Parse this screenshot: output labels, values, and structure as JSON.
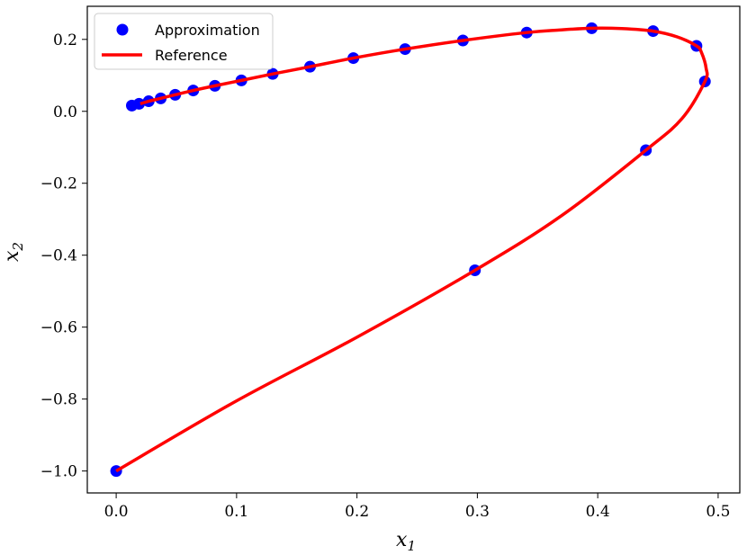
{
  "chart_data": {
    "type": "scatter",
    "title": "",
    "xlabel": "x",
    "xlabel_sub": "1",
    "ylabel": "x",
    "ylabel_sub": "2",
    "xlim": [
      -0.024,
      0.518
    ],
    "ylim": [
      -1.061,
      0.292
    ],
    "xticks": [
      0.0,
      0.1,
      0.2,
      0.3,
      0.4,
      0.5
    ],
    "xtick_labels": [
      "0.0",
      "0.1",
      "0.2",
      "0.3",
      "0.4",
      "0.5"
    ],
    "yticks": [
      0.2,
      0.0,
      -0.2,
      -0.4,
      -0.6,
      -0.8,
      -1.0
    ],
    "ytick_labels": [
      "0.2",
      "0.0",
      "−0.2",
      "−0.4",
      "−0.6",
      "−0.8",
      "−1.0"
    ],
    "grid": false,
    "legend_position": "top-left",
    "legend": [
      {
        "label": "Approximation",
        "marker": "circle",
        "color": "#0000ff"
      },
      {
        "label": "Reference",
        "marker": "line",
        "color": "#ff0000"
      }
    ],
    "series": [
      {
        "name": "Approximation",
        "kind": "scatter",
        "color": "#0000ff",
        "points": [
          [
            0.0,
            -1.0
          ],
          [
            0.298,
            -0.442
          ],
          [
            0.44,
            -0.108
          ],
          [
            0.489,
            0.083
          ],
          [
            0.482,
            0.182
          ],
          [
            0.446,
            0.223
          ],
          [
            0.395,
            0.231
          ],
          [
            0.341,
            0.219
          ],
          [
            0.288,
            0.197
          ],
          [
            0.24,
            0.173
          ],
          [
            0.197,
            0.148
          ],
          [
            0.161,
            0.124
          ],
          [
            0.13,
            0.104
          ],
          [
            0.104,
            0.086
          ],
          [
            0.082,
            0.071
          ],
          [
            0.064,
            0.058
          ],
          [
            0.049,
            0.046
          ],
          [
            0.037,
            0.036
          ],
          [
            0.027,
            0.028
          ],
          [
            0.019,
            0.021
          ],
          [
            0.013,
            0.016
          ]
        ]
      },
      {
        "name": "Reference",
        "kind": "line",
        "color": "#ff0000",
        "points": [
          [
            0.0,
            -1.0
          ],
          [
            0.1,
            -0.805
          ],
          [
            0.2,
            -0.628
          ],
          [
            0.298,
            -0.442
          ],
          [
            0.37,
            -0.29
          ],
          [
            0.44,
            -0.108
          ],
          [
            0.47,
            -0.02
          ],
          [
            0.489,
            0.083
          ],
          [
            0.49,
            0.12
          ],
          [
            0.486,
            0.165
          ],
          [
            0.482,
            0.182
          ],
          [
            0.466,
            0.207
          ],
          [
            0.446,
            0.223
          ],
          [
            0.42,
            0.23
          ],
          [
            0.395,
            0.231
          ],
          [
            0.368,
            0.226
          ],
          [
            0.341,
            0.219
          ],
          [
            0.288,
            0.197
          ],
          [
            0.24,
            0.173
          ],
          [
            0.197,
            0.148
          ],
          [
            0.161,
            0.124
          ],
          [
            0.13,
            0.104
          ],
          [
            0.104,
            0.086
          ],
          [
            0.082,
            0.071
          ],
          [
            0.064,
            0.058
          ],
          [
            0.049,
            0.046
          ],
          [
            0.037,
            0.036
          ],
          [
            0.027,
            0.028
          ],
          [
            0.02,
            0.021
          ]
        ]
      }
    ]
  }
}
